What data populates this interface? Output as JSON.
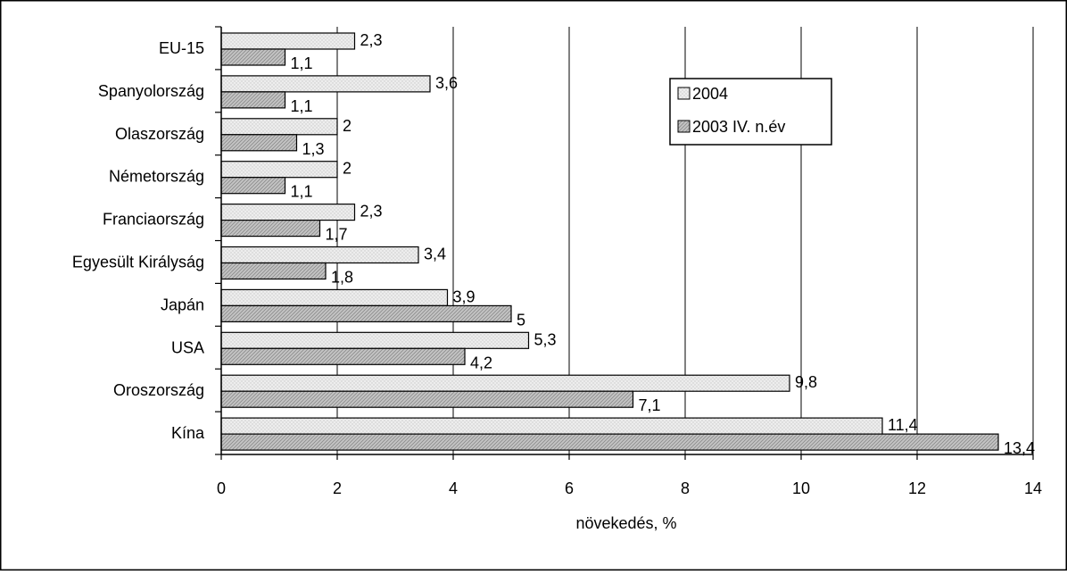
{
  "chart_data": {
    "type": "bar",
    "orientation": "horizontal",
    "title": "",
    "xlabel": "növekedés, %",
    "ylabel": "",
    "categories": [
      "EU-15",
      "Spanyolország",
      "Olaszország",
      "Németország",
      "Franciaország",
      "Egyesült Királyság",
      "Japán",
      "USA",
      "Oroszország",
      "Kína"
    ],
    "series": [
      {
        "name": "2004",
        "values": [
          2.3,
          3.6,
          2,
          2,
          2.3,
          3.4,
          3.9,
          5.3,
          9.8,
          11.4
        ],
        "labels": [
          "2,3",
          "3,6",
          "2",
          "2",
          "2,3",
          "3,4",
          "3,9",
          "5,3",
          "9,8",
          "11,4"
        ],
        "color": "#e6e6e6"
      },
      {
        "name": "2003 IV. n.év",
        "values": [
          1.1,
          1.1,
          1.3,
          1.1,
          1.7,
          1.8,
          5,
          4.2,
          7.1,
          13.4
        ],
        "labels": [
          "1,1",
          "1,1",
          "1,3",
          "1,1",
          "1,7",
          "1,8",
          "5",
          "4,2",
          "7,1",
          "13,4"
        ],
        "color": "#b3b3b3"
      }
    ],
    "xlim": [
      0,
      14
    ],
    "xticks": [
      0,
      2,
      4,
      6,
      8,
      10,
      12,
      14
    ],
    "xtick_labels": [
      "0",
      "2",
      "4",
      "6",
      "8",
      "10",
      "12",
      "14"
    ],
    "grid": "vertical major gridlines",
    "legend_position": "upper right"
  }
}
